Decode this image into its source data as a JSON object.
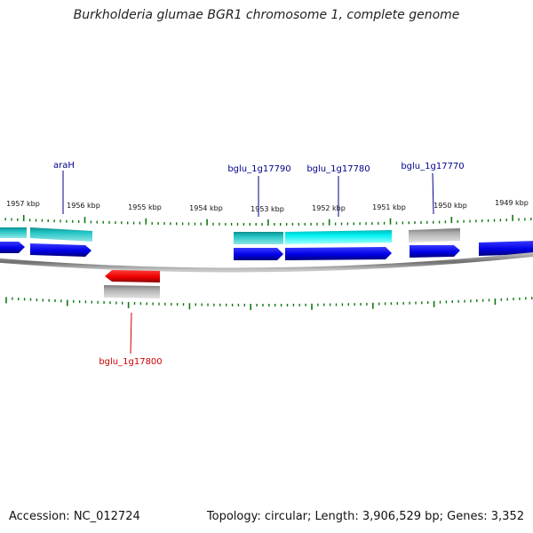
{
  "title": "Burkholderia glumae BGR1 chromosome 1, complete genome",
  "genes": {
    "araH": {
      "label": "araH",
      "color": "#00008b"
    },
    "g17790": {
      "label": "bglu_1g17790",
      "color": "#00008b"
    },
    "g17780": {
      "label": "bglu_1g17780",
      "color": "#00008b"
    },
    "g17770": {
      "label": "bglu_1g17770",
      "color": "#00008b"
    },
    "g17800": {
      "label": "bglu_1g17800",
      "color": "#cc0000"
    }
  },
  "scale": {
    "unit": "kbp",
    "ticks": [
      {
        "kbp": 1957,
        "label": "1957 kbp"
      },
      {
        "kbp": 1956,
        "label": "1956 kbp"
      },
      {
        "kbp": 1955,
        "label": "1955 kbp"
      },
      {
        "kbp": 1954,
        "label": "1954 kbp"
      },
      {
        "kbp": 1953,
        "label": "1953 kbp"
      },
      {
        "kbp": 1952,
        "label": "1952 kbp"
      },
      {
        "kbp": 1951,
        "label": "1951 kbp"
      },
      {
        "kbp": 1950,
        "label": "1950 kbp"
      },
      {
        "kbp": 1949,
        "label": "1949 kbp"
      }
    ]
  },
  "colors": {
    "forward_cds": "#0000ee",
    "reverse_cds": "#ee0000",
    "teal_feature": "#20c0c0",
    "cyan_feature": "#00eeee",
    "grey_feature": "#a8a8a8",
    "tick": "#117711",
    "backbone": "#888888"
  },
  "footer": {
    "accession": "Accession: NC_012724",
    "summary": "Topology: circular; Length: 3,906,529 bp; Genes: 3,352"
  }
}
